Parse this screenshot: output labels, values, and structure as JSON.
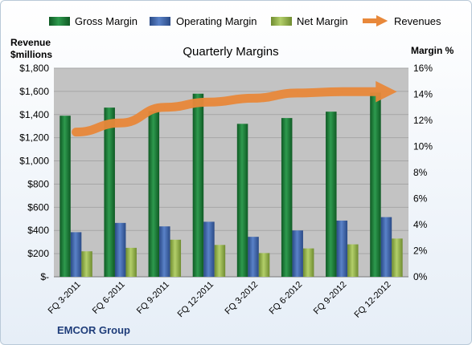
{
  "chart_data": {
    "type": "bar",
    "title": "Quarterly Margins",
    "categories": [
      "FQ 3-2011",
      "FQ 6-2011",
      "FQ 9-2011",
      "FQ 12-2011",
      "FQ 3-2012",
      "FQ 6-2012",
      "FQ 9-2012",
      "FQ 12-2012"
    ],
    "series": [
      {
        "name": "Gross Margin",
        "axis": "left",
        "values": [
          1390,
          1460,
          1430,
          1580,
          1320,
          1370,
          1425,
          1590
        ]
      },
      {
        "name": "Operating Margin",
        "axis": "left",
        "values": [
          385,
          465,
          435,
          475,
          345,
          400,
          485,
          515
        ]
      },
      {
        "name": "Net Margin",
        "axis": "left",
        "values": [
          220,
          250,
          320,
          275,
          205,
          245,
          280,
          330
        ]
      },
      {
        "name": "Revenues",
        "type": "line",
        "axis": "right",
        "values": [
          11.1,
          11.8,
          13.0,
          13.4,
          13.7,
          14.1,
          14.2,
          14.2
        ]
      }
    ],
    "ylabel_left_lines": [
      "Revenue",
      "$millions"
    ],
    "ylabel_right": "Margin %",
    "ylim_left": [
      0,
      1800
    ],
    "ylim_right": [
      0,
      16
    ],
    "yticks_left": [
      "$-",
      "$200",
      "$400",
      "$600",
      "$800",
      "$1,000",
      "$1,200",
      "$1,400",
      "$1,600",
      "$1,800"
    ],
    "yticks_right": [
      "0%",
      "2%",
      "4%",
      "6%",
      "8%",
      "10%",
      "12%",
      "14%",
      "16%"
    ],
    "legend_position": "top",
    "grid": true,
    "colors": {
      "Gross Margin": "#1f7a3a",
      "Operating Margin": "#3c62a8",
      "Net Margin": "#8fb04a",
      "Revenues": "#e8883a",
      "plot_bg": "#c3c3c3"
    }
  },
  "footer": "EMCOR Group"
}
